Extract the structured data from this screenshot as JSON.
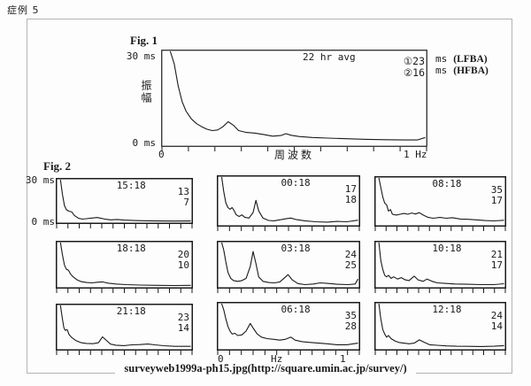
{
  "page": {
    "case_label": "症例 5",
    "caption": "surveyweb1999a-ph15.jpg(http://square.umin.ac.jp/survey/)"
  },
  "fig1": {
    "title": "Fig. 1",
    "annotation": "22 hr avg",
    "y_max_label": "30 ms",
    "y_min_label": "0 ms",
    "y_axis_label": "振幅",
    "x_left_label": "0",
    "x_axis_label": "周波数",
    "x_right_label": "1  Hz",
    "legend": [
      {
        "mark": "①",
        "value": "23",
        "unit": "ms",
        "name": "(LFBA)"
      },
      {
        "mark": "②",
        "value": "16",
        "unit": "ms",
        "name": "(HFBA)"
      }
    ]
  },
  "fig2": {
    "title": "Fig. 2",
    "y_max_label": "30 ms",
    "y_min_label": "0 ms",
    "x_left_label": "0",
    "x_mid_label": "Hz",
    "x_right_label": "1",
    "panels": [
      {
        "time": "15:18",
        "value1": "13",
        "value2": "7"
      },
      {
        "time": "00:18",
        "value1": "17",
        "value2": "18"
      },
      {
        "time": "08:18",
        "value1": "35",
        "value2": "17"
      },
      {
        "time": "18:18",
        "value1": "20",
        "value2": "10"
      },
      {
        "time": "03:18",
        "value1": "24",
        "value2": "25"
      },
      {
        "time": "10:18",
        "value1": "21",
        "value2": "17"
      },
      {
        "time": "21:18",
        "value1": "23",
        "value2": "14"
      },
      {
        "time": "06:18",
        "value1": "35",
        "value2": "28"
      },
      {
        "time": "12:18",
        "value1": "24",
        "value2": "14"
      }
    ]
  },
  "chart_data": [
    {
      "type": "line",
      "title": "22 hr avg",
      "xlabel": "周波数",
      "ylabel": "振幅",
      "unit": "ms",
      "xlim": [
        0,
        1
      ],
      "ylim": [
        0,
        30
      ],
      "legend": [
        {
          "mark": "①",
          "value": 23,
          "unit": "ms",
          "name": "LFBA"
        },
        {
          "mark": "②",
          "value": 16,
          "unit": "ms",
          "name": "HFBA"
        }
      ],
      "points": [
        [
          0.03,
          30
        ],
        [
          0.045,
          26
        ],
        [
          0.06,
          19
        ],
        [
          0.075,
          14
        ],
        [
          0.09,
          11
        ],
        [
          0.11,
          8.5
        ],
        [
          0.13,
          7
        ],
        [
          0.15,
          6
        ],
        [
          0.17,
          5.2
        ],
        [
          0.19,
          4.8
        ],
        [
          0.21,
          5
        ],
        [
          0.23,
          6
        ],
        [
          0.25,
          7.6
        ],
        [
          0.27,
          6.5
        ],
        [
          0.29,
          4.8
        ],
        [
          0.32,
          4.2
        ],
        [
          0.35,
          4
        ],
        [
          0.38,
          3.6
        ],
        [
          0.42,
          3
        ],
        [
          0.45,
          3.2
        ],
        [
          0.47,
          3.8
        ],
        [
          0.49,
          3.3
        ],
        [
          0.52,
          2.9
        ],
        [
          0.57,
          2.6
        ],
        [
          0.63,
          2.4
        ],
        [
          0.7,
          2.2
        ],
        [
          0.78,
          2
        ],
        [
          0.85,
          1.9
        ],
        [
          0.92,
          1.8
        ],
        [
          0.97,
          1.8
        ],
        [
          1,
          2.6
        ]
      ]
    },
    {
      "type": "line",
      "title": "15:18",
      "unit": "ms",
      "xlim": [
        0,
        1
      ],
      "ylim": [
        0,
        30
      ],
      "values": [
        13,
        7
      ],
      "points": [
        [
          0.025,
          30
        ],
        [
          0.04,
          20
        ],
        [
          0.055,
          12
        ],
        [
          0.07,
          9
        ],
        [
          0.09,
          8
        ],
        [
          0.11,
          7.5
        ],
        [
          0.13,
          5
        ],
        [
          0.16,
          3
        ],
        [
          0.19,
          2.5
        ],
        [
          0.22,
          2.8
        ],
        [
          0.26,
          3.2
        ],
        [
          0.3,
          3.6
        ],
        [
          0.33,
          3
        ],
        [
          0.36,
          2.4
        ],
        [
          0.4,
          2
        ],
        [
          0.45,
          2.2
        ],
        [
          0.5,
          1.8
        ],
        [
          0.58,
          1.5
        ],
        [
          0.68,
          1.3
        ],
        [
          0.78,
          1.2
        ],
        [
          0.88,
          1.1
        ],
        [
          1,
          1.2
        ]
      ]
    },
    {
      "type": "line",
      "title": "00:18",
      "unit": "ms",
      "xlim": [
        0,
        1
      ],
      "ylim": [
        0,
        30
      ],
      "values": [
        17,
        18
      ],
      "points": [
        [
          0.025,
          30
        ],
        [
          0.04,
          21
        ],
        [
          0.055,
          14
        ],
        [
          0.07,
          11
        ],
        [
          0.085,
          10
        ],
        [
          0.1,
          11
        ],
        [
          0.115,
          9
        ],
        [
          0.13,
          6.5
        ],
        [
          0.15,
          5.5
        ],
        [
          0.17,
          6.5
        ],
        [
          0.19,
          5
        ],
        [
          0.22,
          4.5
        ],
        [
          0.25,
          8
        ],
        [
          0.27,
          15.5
        ],
        [
          0.29,
          9
        ],
        [
          0.32,
          4.5
        ],
        [
          0.36,
          3
        ],
        [
          0.4,
          2.8
        ],
        [
          0.45,
          3.5
        ],
        [
          0.49,
          4.2
        ],
        [
          0.52,
          4.5
        ],
        [
          0.56,
          3.5
        ],
        [
          0.62,
          2.8
        ],
        [
          0.7,
          2.2
        ],
        [
          0.78,
          2
        ],
        [
          0.85,
          2.4
        ],
        [
          0.92,
          2.2
        ],
        [
          1,
          3.2
        ]
      ]
    },
    {
      "type": "line",
      "title": "08:18",
      "unit": "ms",
      "xlim": [
        0,
        1
      ],
      "ylim": [
        0,
        30
      ],
      "values": [
        35,
        17
      ],
      "points": [
        [
          0.025,
          30
        ],
        [
          0.04,
          24
        ],
        [
          0.055,
          18
        ],
        [
          0.07,
          14
        ],
        [
          0.085,
          13
        ],
        [
          0.1,
          9
        ],
        [
          0.115,
          10
        ],
        [
          0.13,
          7
        ],
        [
          0.16,
          6.5
        ],
        [
          0.19,
          7
        ],
        [
          0.22,
          7.5
        ],
        [
          0.25,
          7
        ],
        [
          0.28,
          7.8
        ],
        [
          0.31,
          7.2
        ],
        [
          0.34,
          8
        ],
        [
          0.37,
          6.5
        ],
        [
          0.41,
          5
        ],
        [
          0.45,
          4.5
        ],
        [
          0.5,
          5
        ],
        [
          0.55,
          4.5
        ],
        [
          0.6,
          4.8
        ],
        [
          0.66,
          4
        ],
        [
          0.72,
          3.8
        ],
        [
          0.78,
          3.5
        ],
        [
          0.85,
          3
        ],
        [
          0.92,
          2.8
        ],
        [
          1,
          3.2
        ]
      ]
    },
    {
      "type": "line",
      "title": "18:18",
      "unit": "ms",
      "xlim": [
        0,
        1
      ],
      "ylim": [
        0,
        30
      ],
      "values": [
        20,
        10
      ],
      "points": [
        [
          0.025,
          30
        ],
        [
          0.04,
          22
        ],
        [
          0.055,
          15
        ],
        [
          0.07,
          12
        ],
        [
          0.085,
          11.5
        ],
        [
          0.1,
          9
        ],
        [
          0.12,
          7
        ],
        [
          0.15,
          5
        ],
        [
          0.18,
          3.8
        ],
        [
          0.22,
          3.2
        ],
        [
          0.26,
          3
        ],
        [
          0.3,
          3.4
        ],
        [
          0.34,
          3.6
        ],
        [
          0.38,
          2.8
        ],
        [
          0.44,
          2.2
        ],
        [
          0.52,
          1.8
        ],
        [
          0.62,
          1.5
        ],
        [
          0.75,
          1.3
        ],
        [
          0.88,
          1.2
        ],
        [
          1,
          1.3
        ]
      ]
    },
    {
      "type": "line",
      "title": "03:18",
      "unit": "ms",
      "xlim": [
        0,
        1
      ],
      "ylim": [
        0,
        30
      ],
      "values": [
        24,
        25
      ],
      "points": [
        [
          0.025,
          30
        ],
        [
          0.04,
          25
        ],
        [
          0.055,
          17
        ],
        [
          0.07,
          10
        ],
        [
          0.09,
          6
        ],
        [
          0.11,
          4.5
        ],
        [
          0.14,
          4
        ],
        [
          0.17,
          4.5
        ],
        [
          0.2,
          6
        ],
        [
          0.23,
          14
        ],
        [
          0.25,
          24
        ],
        [
          0.27,
          16
        ],
        [
          0.29,
          7
        ],
        [
          0.32,
          4
        ],
        [
          0.36,
          3.2
        ],
        [
          0.4,
          3
        ],
        [
          0.44,
          3.5
        ],
        [
          0.47,
          6
        ],
        [
          0.5,
          8.5
        ],
        [
          0.53,
          5
        ],
        [
          0.57,
          2.5
        ],
        [
          0.62,
          1.8
        ],
        [
          0.68,
          2.2
        ],
        [
          0.73,
          3
        ],
        [
          0.78,
          2.6
        ],
        [
          0.85,
          2
        ],
        [
          0.93,
          1.8
        ],
        [
          0.98,
          2.2
        ],
        [
          1,
          5.5
        ]
      ]
    },
    {
      "type": "line",
      "title": "10:18",
      "unit": "ms",
      "xlim": [
        0,
        1
      ],
      "ylim": [
        0,
        30
      ],
      "values": [
        21,
        17
      ],
      "points": [
        [
          0.025,
          30
        ],
        [
          0.04,
          18
        ],
        [
          0.055,
          12
        ],
        [
          0.07,
          8
        ],
        [
          0.085,
          7
        ],
        [
          0.1,
          8
        ],
        [
          0.12,
          6
        ],
        [
          0.14,
          7
        ],
        [
          0.17,
          5.5
        ],
        [
          0.2,
          6.5
        ],
        [
          0.23,
          5
        ],
        [
          0.26,
          4.5
        ],
        [
          0.3,
          7.5
        ],
        [
          0.33,
          5
        ],
        [
          0.37,
          4
        ],
        [
          0.4,
          5.5
        ],
        [
          0.44,
          4
        ],
        [
          0.48,
          3
        ],
        [
          0.54,
          2.6
        ],
        [
          0.62,
          2.2
        ],
        [
          0.72,
          2
        ],
        [
          0.82,
          1.8
        ],
        [
          0.92,
          1.8
        ],
        [
          1,
          2.4
        ]
      ]
    },
    {
      "type": "line",
      "title": "21:18",
      "unit": "ms",
      "xlim": [
        0,
        1
      ],
      "ylim": [
        0,
        30
      ],
      "values": [
        23,
        14
      ],
      "points": [
        [
          0.025,
          30
        ],
        [
          0.04,
          21
        ],
        [
          0.05,
          15
        ],
        [
          0.06,
          13
        ],
        [
          0.075,
          13.5
        ],
        [
          0.09,
          10
        ],
        [
          0.11,
          8
        ],
        [
          0.14,
          6
        ],
        [
          0.18,
          4.5
        ],
        [
          0.22,
          4
        ],
        [
          0.27,
          3.8
        ],
        [
          0.31,
          4.5
        ],
        [
          0.34,
          8.5
        ],
        [
          0.37,
          6
        ],
        [
          0.4,
          3.5
        ],
        [
          0.44,
          2.8
        ],
        [
          0.5,
          2.5
        ],
        [
          0.56,
          3
        ],
        [
          0.62,
          3.2
        ],
        [
          0.68,
          3.6
        ],
        [
          0.73,
          3
        ],
        [
          0.8,
          2.4
        ],
        [
          0.88,
          2
        ],
        [
          1,
          2
        ]
      ]
    },
    {
      "type": "line",
      "title": "06:18",
      "unit": "ms",
      "xlim": [
        0,
        1
      ],
      "ylim": [
        0,
        30
      ],
      "values": [
        35,
        28
      ],
      "points": [
        [
          0.025,
          30
        ],
        [
          0.04,
          26
        ],
        [
          0.055,
          20
        ],
        [
          0.07,
          15
        ],
        [
          0.085,
          12
        ],
        [
          0.1,
          10
        ],
        [
          0.12,
          10.5
        ],
        [
          0.14,
          9
        ],
        [
          0.17,
          9.5
        ],
        [
          0.2,
          12
        ],
        [
          0.23,
          17
        ],
        [
          0.25,
          14
        ],
        [
          0.28,
          10
        ],
        [
          0.31,
          8
        ],
        [
          0.35,
          7
        ],
        [
          0.4,
          6.5
        ],
        [
          0.44,
          6
        ],
        [
          0.48,
          6.5
        ],
        [
          0.52,
          8
        ],
        [
          0.55,
          6
        ],
        [
          0.6,
          5
        ],
        [
          0.66,
          4.5
        ],
        [
          0.72,
          4
        ],
        [
          0.78,
          3.6
        ],
        [
          0.85,
          3
        ],
        [
          0.92,
          3
        ],
        [
          1,
          4
        ]
      ]
    },
    {
      "type": "line",
      "title": "12:18",
      "unit": "ms",
      "xlim": [
        0,
        1
      ],
      "ylim": [
        0,
        30
      ],
      "values": [
        24,
        14
      ],
      "points": [
        [
          0.025,
          30
        ],
        [
          0.04,
          20
        ],
        [
          0.055,
          13
        ],
        [
          0.07,
          10
        ],
        [
          0.085,
          8
        ],
        [
          0.1,
          9
        ],
        [
          0.12,
          7
        ],
        [
          0.15,
          5.5
        ],
        [
          0.18,
          4.5
        ],
        [
          0.22,
          4
        ],
        [
          0.26,
          3.6
        ],
        [
          0.3,
          4
        ],
        [
          0.34,
          6.2
        ],
        [
          0.38,
          4.5
        ],
        [
          0.42,
          3
        ],
        [
          0.48,
          2.6
        ],
        [
          0.55,
          2.2
        ],
        [
          0.63,
          2
        ],
        [
          0.72,
          1.9
        ],
        [
          0.82,
          1.8
        ],
        [
          0.92,
          2
        ],
        [
          1,
          2.4
        ]
      ]
    }
  ]
}
